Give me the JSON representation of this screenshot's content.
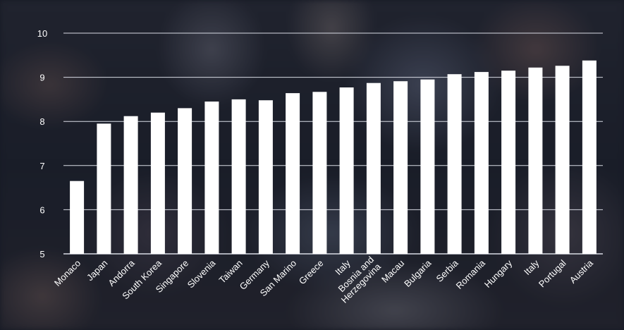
{
  "chart_data": {
    "type": "bar",
    "title": "",
    "xlabel": "",
    "ylabel": "",
    "ylim": [
      5,
      10
    ],
    "yticks": [
      "5",
      "6",
      "7",
      "8",
      "9",
      "10"
    ],
    "grid": true,
    "categories": [
      [
        "Monaco"
      ],
      [
        "Japan"
      ],
      [
        "Andorra"
      ],
      [
        "South Korea"
      ],
      [
        "Singapore"
      ],
      [
        "Slovenia"
      ],
      [
        "Taiwan"
      ],
      [
        "Germany"
      ],
      [
        "San Marino"
      ],
      [
        "Greece"
      ],
      [
        "Italy"
      ],
      [
        "Bosnia and",
        "Herzegovina"
      ],
      [
        "Macau"
      ],
      [
        "Bulgaria"
      ],
      [
        "Serbia"
      ],
      [
        "Romania"
      ],
      [
        "Hungary"
      ],
      [
        "Italy"
      ],
      [
        "Portugal"
      ],
      [
        "Austria"
      ]
    ],
    "values": [
      6.65,
      7.95,
      8.12,
      8.2,
      8.3,
      8.45,
      8.5,
      8.48,
      8.64,
      8.67,
      8.77,
      8.87,
      8.91,
      8.95,
      9.07,
      9.12,
      9.15,
      9.22,
      9.26,
      9.38
    ],
    "colors": {
      "bar": "#ffffff",
      "grid": "#d8dbe4",
      "text": "#ffffff"
    }
  }
}
